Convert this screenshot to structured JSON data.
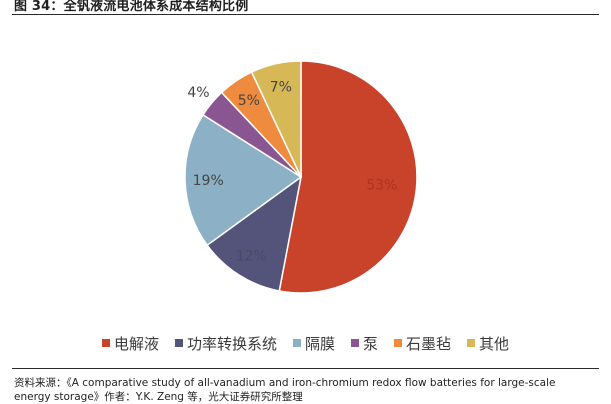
{
  "figure": {
    "title": "图 34：全钒液流电池体系成本结构比例",
    "source": "资料来源：《A comparative study of all-vanadium and iron-chromium redox flow batteries for large-scale energy storage》作者：Y.K. Zeng 等，光大证券研究所整理"
  },
  "chart_data": {
    "type": "pie",
    "title": "",
    "legend_position": "bottom",
    "slices": [
      {
        "label": "电解液",
        "value": 53,
        "display": "53%",
        "color": "#c8432a"
      },
      {
        "label": "功率转换系统",
        "value": 12,
        "display": "12%",
        "color": "#545379"
      },
      {
        "label": "隔膜",
        "value": 19,
        "display": "19%",
        "color": "#8cb1c7"
      },
      {
        "label": "泵",
        "value": 4,
        "display": "4%",
        "color": "#8a5691"
      },
      {
        "label": "石墨毡",
        "value": 5,
        "display": "5%",
        "color": "#ef8b3e"
      },
      {
        "label": "其他",
        "value": 7,
        "display": "7%",
        "color": "#d7b856"
      }
    ]
  }
}
